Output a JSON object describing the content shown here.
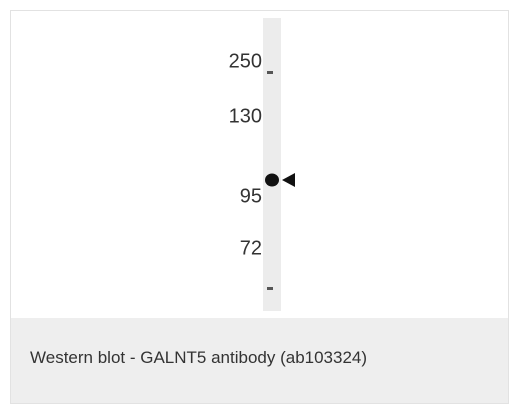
{
  "figure": {
    "markers": [
      "250",
      "130",
      "95",
      "72"
    ]
  },
  "caption": "Western blot - GALNT5 antibody (ab103324)"
}
